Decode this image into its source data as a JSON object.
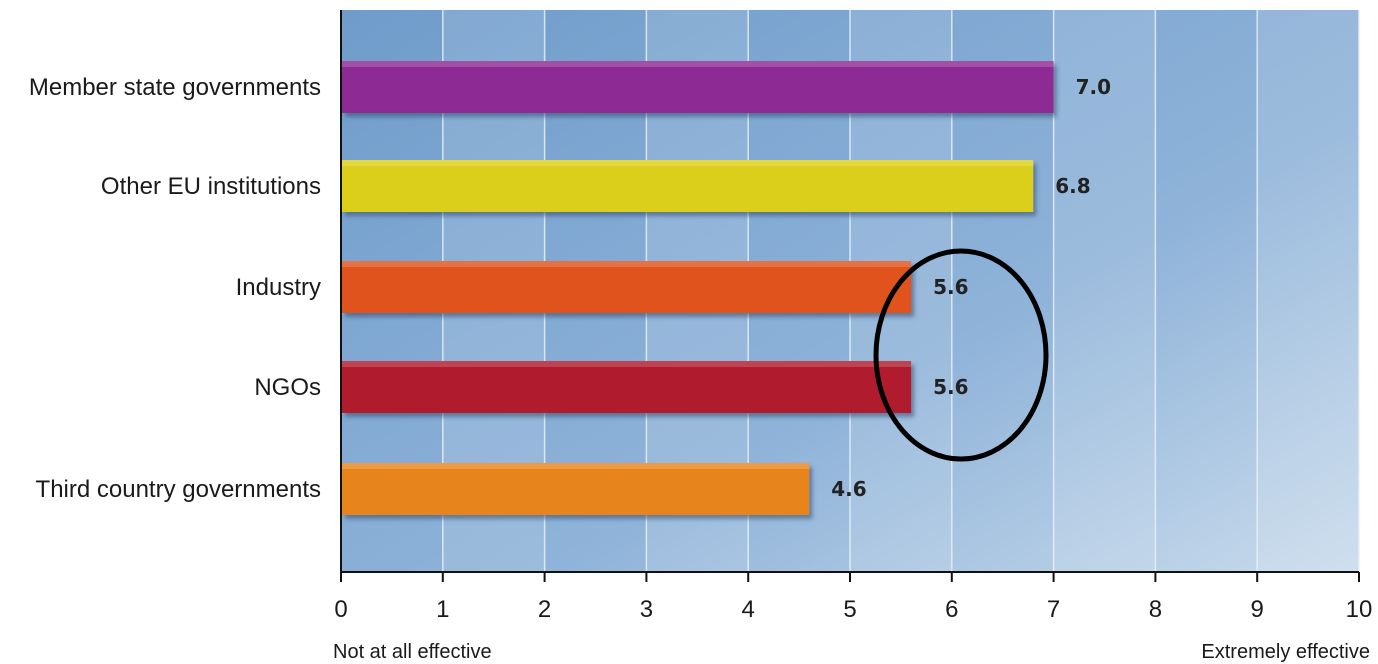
{
  "chart_data": {
    "type": "bar",
    "orientation": "horizontal",
    "categories": [
      "Member state governments",
      "Other EU institutions",
      "Industry",
      "NGOs",
      "Third country governments"
    ],
    "values": [
      7.0,
      6.8,
      5.6,
      5.6,
      4.6
    ],
    "value_labels": [
      "7.0",
      "6.8",
      "5.6",
      "5.6",
      "4.6"
    ],
    "bar_colors": [
      "#8e2b93",
      "#dccf1e",
      "#e0521f",
      "#b01b2e",
      "#e8841f"
    ],
    "xlim": [
      0,
      10
    ],
    "xticks": [
      0,
      1,
      2,
      3,
      4,
      5,
      6,
      7,
      8,
      9,
      10
    ],
    "xticks_labels": [
      "0",
      "1",
      "2",
      "3",
      "4",
      "5",
      "6",
      "7",
      "8",
      "9",
      "10"
    ],
    "scale_min_label": "Not at all effective",
    "scale_max_label": "Extremely effective",
    "background_color": "#7fa6cf",
    "grid": true,
    "annotation": {
      "shape": "ellipse",
      "around_values": [
        "5.6",
        "5.6"
      ],
      "color": "#000000"
    }
  }
}
